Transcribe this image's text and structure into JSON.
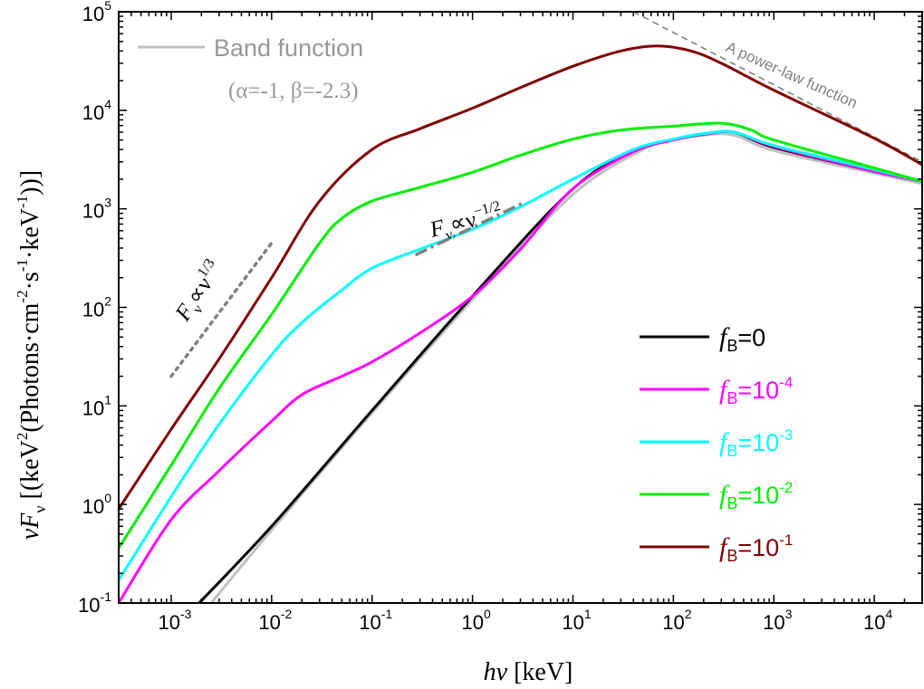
{
  "chart_data": {
    "type": "line",
    "x_scale": "log",
    "y_scale": "log",
    "xlim": [
      0.0003,
      30000
    ],
    "ylim": [
      0.1,
      100000
    ],
    "xlabel": {
      "italic": "hν",
      "rest": " [keV]"
    },
    "ylabel": {
      "prefix": "νF",
      "sub": "ν",
      "mid1": " [(keV",
      "sup1": "2",
      "mid2": "(Photons·cm",
      "sup2": "-2",
      "mid3": "·s",
      "sup3": "-1",
      "mid4": "·keV",
      "sup4": "-1",
      "end": "))]"
    },
    "x_ticks": [
      {
        "value": 0.001,
        "base": "10",
        "exp": "-3"
      },
      {
        "value": 0.01,
        "base": "10",
        "exp": "-2"
      },
      {
        "value": 0.1,
        "base": "10",
        "exp": "-1"
      },
      {
        "value": 1,
        "base": "10",
        "exp": "0"
      },
      {
        "value": 10,
        "base": "10",
        "exp": "1"
      },
      {
        "value": 100,
        "base": "10",
        "exp": "2"
      },
      {
        "value": 1000,
        "base": "10",
        "exp": "3"
      },
      {
        "value": 10000,
        "base": "10",
        "exp": "4"
      }
    ],
    "y_ticks": [
      {
        "value": 0.1,
        "base": "10",
        "exp": "-1"
      },
      {
        "value": 1,
        "base": "10",
        "exp": "0"
      },
      {
        "value": 10,
        "base": "10",
        "exp": "1"
      },
      {
        "value": 100,
        "base": "10",
        "exp": "2"
      },
      {
        "value": 1000,
        "base": "10",
        "exp": "3"
      },
      {
        "value": 10000,
        "base": "10",
        "exp": "4"
      },
      {
        "value": 100000,
        "base": "10",
        "exp": "5"
      }
    ],
    "series": [
      {
        "name": "Band function",
        "color": "#c0c0c0",
        "label_main": "Band function",
        "label_params": "(α=-1, β=-2.3)",
        "points": [
          [
            0.0025,
            0.1
          ],
          [
            0.01,
            0.55
          ],
          [
            0.1,
            8.5
          ],
          [
            1,
            120
          ],
          [
            10,
            1400
          ],
          [
            50,
            4000
          ],
          [
            100,
            5000
          ],
          [
            200,
            5600
          ],
          [
            400,
            5600
          ],
          [
            1000,
            3900
          ],
          [
            10000,
            2300
          ],
          [
            30000,
            1800
          ]
        ]
      },
      {
        "name": "A power-law function",
        "color": "#808080",
        "label": "A power-law function",
        "points": [
          [
            40,
            100000
          ],
          [
            30000,
            3000
          ]
        ]
      },
      {
        "name": "fB=0",
        "color": "#000000",
        "label_prefix": "f",
        "label_sub": "B",
        "label_eq": "=0",
        "label_exp": "",
        "points": [
          [
            0.0019,
            0.1
          ],
          [
            0.01,
            0.6
          ],
          [
            0.1,
            9
          ],
          [
            1,
            130
          ],
          [
            10,
            1600
          ],
          [
            40,
            3800
          ],
          [
            100,
            5000
          ],
          [
            200,
            5700
          ],
          [
            400,
            6000
          ],
          [
            1000,
            4200
          ],
          [
            10000,
            2400
          ],
          [
            30000,
            1900
          ]
        ]
      },
      {
        "name": "fB=10^-4",
        "color": "#ff00ff",
        "label_prefix": "f",
        "label_sub": "B",
        "label_eq": "=10",
        "label_exp": "-4",
        "points": [
          [
            0.0003,
            0.1
          ],
          [
            0.001,
            0.7
          ],
          [
            0.003,
            2.2
          ],
          [
            0.01,
            7
          ],
          [
            0.02,
            13
          ],
          [
            0.05,
            20
          ],
          [
            0.1,
            28
          ],
          [
            0.3,
            55
          ],
          [
            1,
            130
          ],
          [
            3,
            390
          ],
          [
            10,
            1600
          ],
          [
            40,
            3800
          ],
          [
            100,
            5000
          ],
          [
            200,
            5700
          ],
          [
            400,
            6000
          ],
          [
            1000,
            4300
          ],
          [
            10000,
            2400
          ],
          [
            30000,
            1900
          ]
        ]
      },
      {
        "name": "fB=10^-3",
        "color": "#00ffff",
        "label_prefix": "f",
        "label_sub": "B",
        "label_eq": "=10",
        "label_exp": "-3",
        "points": [
          [
            0.0003,
            0.17
          ],
          [
            0.001,
            1.2
          ],
          [
            0.003,
            6.5
          ],
          [
            0.01,
            33
          ],
          [
            0.02,
            70
          ],
          [
            0.05,
            150
          ],
          [
            0.1,
            250
          ],
          [
            0.3,
            390
          ],
          [
            1,
            620
          ],
          [
            3,
            1050
          ],
          [
            10,
            2000
          ],
          [
            40,
            4000
          ],
          [
            100,
            5100
          ],
          [
            200,
            5800
          ],
          [
            400,
            6000
          ],
          [
            1000,
            4400
          ],
          [
            10000,
            2500
          ],
          [
            30000,
            1900
          ]
        ]
      },
      {
        "name": "fB=10^-2",
        "color": "#00ee00",
        "label_prefix": "f",
        "label_sub": "B",
        "label_eq": "=10",
        "label_exp": "-2",
        "points": [
          [
            0.0003,
            0.36
          ],
          [
            0.001,
            2.5
          ],
          [
            0.003,
            15
          ],
          [
            0.01,
            85
          ],
          [
            0.03,
            450
          ],
          [
            0.05,
            800
          ],
          [
            0.1,
            1200
          ],
          [
            0.3,
            1650
          ],
          [
            1,
            2350
          ],
          [
            3,
            3500
          ],
          [
            10,
            5100
          ],
          [
            30,
            6300
          ],
          [
            100,
            6900
          ],
          [
            300,
            7400
          ],
          [
            600,
            6300
          ],
          [
            1000,
            5000
          ],
          [
            10000,
            2600
          ],
          [
            30000,
            1900
          ]
        ]
      },
      {
        "name": "fB=10^-1",
        "color": "#800000",
        "label_prefix": "f",
        "label_sub": "B",
        "label_eq": "=10",
        "label_exp": "-1",
        "points": [
          [
            0.0003,
            0.9
          ],
          [
            0.001,
            5.8
          ],
          [
            0.003,
            30
          ],
          [
            0.01,
            200
          ],
          [
            0.03,
            1200
          ],
          [
            0.1,
            4000
          ],
          [
            0.3,
            6500
          ],
          [
            1,
            10500
          ],
          [
            3,
            17000
          ],
          [
            10,
            28000
          ],
          [
            30,
            40000
          ],
          [
            70,
            45000
          ],
          [
            150,
            40000
          ],
          [
            300,
            30000
          ],
          [
            1000,
            16000
          ],
          [
            10000,
            5200
          ],
          [
            30000,
            2800
          ]
        ]
      }
    ],
    "legend": {
      "placement": "bottom-right",
      "order": [
        "fB=0",
        "fB=10^-4",
        "fB=10^-3",
        "fB=10^-2",
        "fB=10^-1"
      ]
    },
    "annotations": [
      {
        "id": "slope13",
        "text_base": "F",
        "text_sub": "ν",
        "text_prop": "∝ν",
        "text_exp": "1/3",
        "style": "dotted",
        "color": "#808080",
        "x1": 0.001,
        "y1": 20,
        "x2": 0.01,
        "y2": 450
      },
      {
        "id": "slope12",
        "text_base": "F",
        "text_sub": "ν",
        "text_prop": "∝ν",
        "text_exp": "−1/2",
        "style": "dashdot",
        "color": "#808080",
        "x1": 0.27,
        "y1": 340,
        "x2": 3.2,
        "y2": 1150
      }
    ]
  }
}
